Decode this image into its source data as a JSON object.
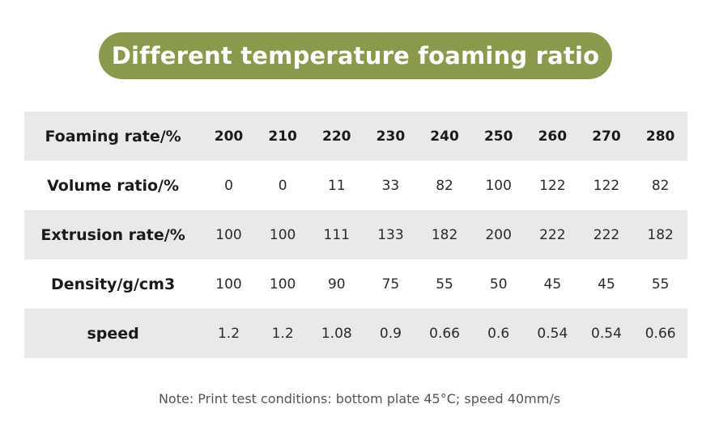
{
  "title": "Different temperature foaming ratio",
  "colors": {
    "title_background": "#8a9a4d",
    "title_text": "#ffffff",
    "shaded_row": "#e9e9e9"
  },
  "table": {
    "rows": [
      {
        "label": "Foaming rate/%",
        "cells": [
          "200",
          "210",
          "220",
          "230",
          "240",
          "250",
          "260",
          "270",
          "280"
        ]
      },
      {
        "label": "Volume ratio/%",
        "cells": [
          "0",
          "0",
          "11",
          "33",
          "82",
          "100",
          "122",
          "122",
          "82"
        ]
      },
      {
        "label": "Extrusion rate/%",
        "cells": [
          "100",
          "100",
          "111",
          "133",
          "182",
          "200",
          "222",
          "222",
          "182"
        ]
      },
      {
        "label": "Density/g/cm3",
        "cells": [
          "100",
          "100",
          "90",
          "75",
          "55",
          "50",
          "45",
          "45",
          "55"
        ]
      },
      {
        "label": "speed",
        "cells": [
          "1.2",
          "1.2",
          "1.08",
          "0.9",
          "0.66",
          "0.6",
          "0.54",
          "0.54",
          "0.66"
        ]
      }
    ]
  },
  "note": "Note: Print test conditions: bottom plate 45°C; speed 40mm/s"
}
